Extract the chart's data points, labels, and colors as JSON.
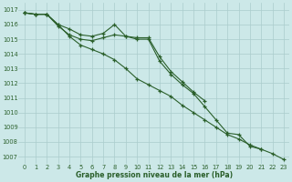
{
  "hours": [
    0,
    1,
    2,
    3,
    4,
    5,
    6,
    7,
    8,
    9,
    10,
    11,
    12,
    13,
    14,
    15,
    16,
    17,
    18,
    19,
    20,
    21,
    22,
    23
  ],
  "line1": [
    1016.8,
    1016.7,
    null,
    null,
    null,
    null,
    null,
    null,
    null,
    null,
    null,
    null,
    null,
    null,
    null,
    null,
    null,
    null,
    null,
    null,
    null,
    null,
    null,
    null
  ],
  "line_upper": [
    1016.8,
    1016.7,
    1016.7,
    1016.0,
    1015.7,
    1015.3,
    1015.2,
    1015.4,
    1016.0,
    1015.2,
    1015.1,
    1015.1,
    1013.8,
    1012.8,
    1012.1,
    1011.4,
    1010.8,
    null,
    null,
    null,
    null,
    null,
    null,
    null
  ],
  "line_mid": [
    1016.8,
    1016.7,
    1016.7,
    1015.9,
    1015.3,
    1015.0,
    1014.9,
    1015.1,
    1015.3,
    1015.2,
    1015.0,
    1015.0,
    1013.5,
    1012.6,
    1011.9,
    1011.3,
    1010.4,
    1009.5,
    1008.6,
    1008.5,
    1007.7,
    1007.5,
    null,
    null
  ],
  "line_lower": [
    1016.8,
    1016.7,
    1016.7,
    1016.0,
    1015.2,
    1014.6,
    1014.3,
    1014.0,
    1013.6,
    1013.0,
    1012.3,
    1011.9,
    1011.5,
    1011.1,
    1010.5,
    1010.0,
    1009.5,
    1009.0,
    1008.5,
    1008.2,
    1007.8,
    1007.5,
    1007.2,
    1006.8
  ],
  "bg_color": "#cce8e8",
  "grid_color": "#aacccc",
  "line_color": "#2a5f2a",
  "ylabel_ticks": [
    1007,
    1008,
    1009,
    1010,
    1011,
    1012,
    1013,
    1014,
    1015,
    1016,
    1017
  ],
  "xlabel": "Graphe pression niveau de la mer (hPa)",
  "ylim": [
    1006.5,
    1017.5
  ],
  "xlim": [
    -0.5,
    23.5
  ]
}
